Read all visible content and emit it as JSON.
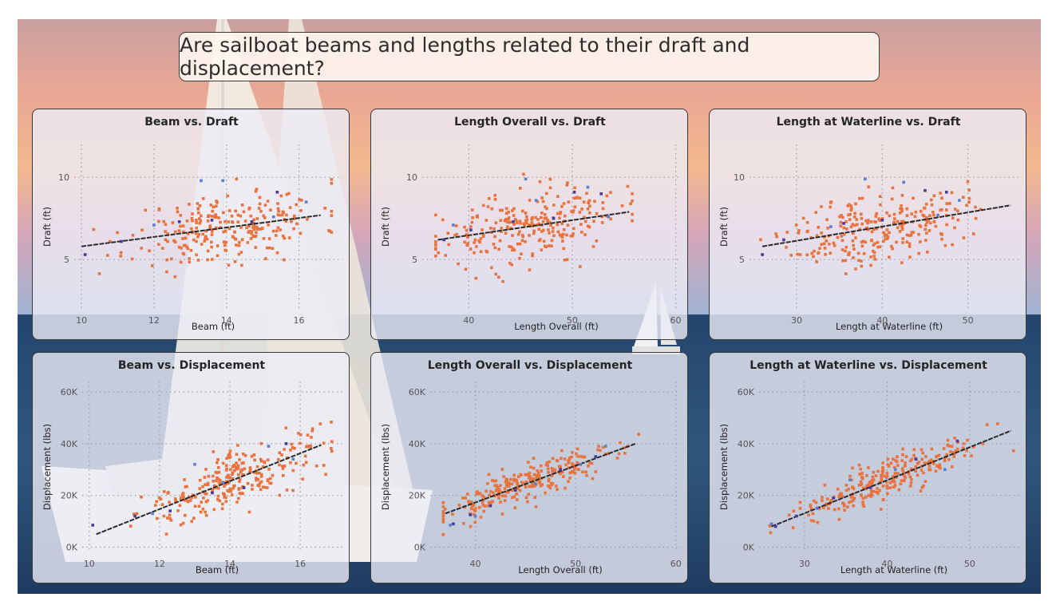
{
  "title": "Are sailboat beams and lengths related to their draft and displacement?",
  "colors": {
    "points": "#e9733f",
    "highlight_blue": "#5b7fd0",
    "highlight_purple": "#4a3a9a",
    "trend": "#2a2a2a"
  },
  "chart_data": [
    {
      "type": "scatter",
      "title": "Beam vs. Draft",
      "xlabel": "Beam (ft)",
      "ylabel": "Draft (ft)",
      "xlim": [
        9.8,
        17.2
      ],
      "ylim": [
        2.0,
        12.0
      ],
      "xticks": [
        10,
        12,
        14,
        16
      ],
      "yticks": [
        5,
        10
      ],
      "ytick_labels": [
        "5",
        "10"
      ],
      "trend": {
        "x": [
          10.0,
          16.6
        ],
        "y": [
          5.8,
          7.7
        ]
      },
      "highlight_blue": [
        [
          12.0,
          7.1
        ],
        [
          13.3,
          9.8
        ],
        [
          13.9,
          9.8
        ],
        [
          15.3,
          7.6
        ],
        [
          16.2,
          8.5
        ]
      ],
      "highlight_purple": [
        [
          10.1,
          5.3
        ],
        [
          11.1,
          6.1
        ],
        [
          12.7,
          7.3
        ],
        [
          13.6,
          7.4
        ],
        [
          14.7,
          7.3
        ],
        [
          15.4,
          9.1
        ]
      ]
    },
    {
      "type": "scatter",
      "title": "Length Overall vs. Draft",
      "xlabel": "Length Overall (ft)",
      "ylabel": "Draft (ft)",
      "xlim": [
        35.5,
        60.5
      ],
      "ylim": [
        2.0,
        12.0
      ],
      "xticks": [
        40,
        50,
        60
      ],
      "yticks": [
        5,
        10
      ],
      "ytick_labels": [
        "5",
        "10"
      ],
      "trend": {
        "x": [
          37.0,
          55.5
        ],
        "y": [
          6.2,
          7.9
        ]
      },
      "highlight_blue": [
        [
          38.5,
          7.1
        ],
        [
          45.5,
          9.9
        ],
        [
          46.5,
          8.6
        ],
        [
          51.5,
          9.4
        ],
        [
          53.5,
          7.6
        ]
      ],
      "highlight_purple": [
        [
          37.6,
          6.2
        ],
        [
          40.2,
          6.8
        ],
        [
          44.3,
          7.3
        ],
        [
          48.2,
          7.5
        ],
        [
          50.2,
          9.1
        ],
        [
          52.8,
          9.0
        ]
      ]
    },
    {
      "type": "scatter",
      "title": "Length at Waterline vs. Draft",
      "xlabel": "Length at Waterline (ft)",
      "ylabel": "Draft (ft)",
      "xlim": [
        24.5,
        56.0
      ],
      "ylim": [
        2.0,
        12.0
      ],
      "xticks": [
        30,
        40,
        50
      ],
      "yticks": [
        5,
        10
      ],
      "ytick_labels": [
        "5",
        "10"
      ],
      "trend": {
        "x": [
          26.0,
          55.0
        ],
        "y": [
          5.8,
          8.3
        ]
      },
      "highlight_blue": [
        [
          34.0,
          7.0
        ],
        [
          38.0,
          9.9
        ],
        [
          42.5,
          9.7
        ],
        [
          46.5,
          7.7
        ],
        [
          49.0,
          8.6
        ]
      ],
      "highlight_purple": [
        [
          26.0,
          5.3
        ],
        [
          28.5,
          6.2
        ],
        [
          35.5,
          7.2
        ],
        [
          40.0,
          7.4
        ],
        [
          45.0,
          9.2
        ],
        [
          47.5,
          9.1
        ]
      ]
    },
    {
      "type": "scatter",
      "title": "Beam vs. Displacement",
      "xlabel": "Beam (ft)",
      "ylabel": "Displacement (lbs)",
      "xlim": [
        9.8,
        17.2
      ],
      "ylim": [
        -2000,
        64000
      ],
      "xticks": [
        10,
        12,
        14,
        16
      ],
      "yticks": [
        0,
        20000,
        40000,
        60000
      ],
      "ytick_labels": [
        "0K",
        "20K",
        "40K",
        "60K"
      ],
      "trend": {
        "x": [
          10.2,
          16.6
        ],
        "y": [
          5000,
          39500
        ]
      },
      "highlight_blue": [
        [
          11.8,
          13000
        ],
        [
          13.0,
          32000
        ],
        [
          13.8,
          25000
        ],
        [
          15.1,
          39000
        ],
        [
          15.8,
          34000
        ]
      ],
      "highlight_purple": [
        [
          10.1,
          8500
        ],
        [
          11.3,
          12000
        ],
        [
          12.3,
          14000
        ],
        [
          13.5,
          21000
        ],
        [
          14.4,
          23000
        ],
        [
          15.6,
          40000
        ]
      ]
    },
    {
      "type": "scatter",
      "title": "Length Overall vs. Displacement",
      "xlabel": "Length Overall (ft)",
      "ylabel": "Displacement (lbs)",
      "xlim": [
        35.5,
        60.5
      ],
      "ylim": [
        -2000,
        64000
      ],
      "xticks": [
        40,
        50,
        60
      ],
      "yticks": [
        0,
        20000,
        40000,
        60000
      ],
      "ytick_labels": [
        "0K",
        "20K",
        "40K",
        "60K"
      ],
      "trend": {
        "x": [
          37.0,
          56.0
        ],
        "y": [
          13000,
          40000
        ]
      },
      "highlight_blue": [
        [
          37.5,
          8500
        ],
        [
          40.0,
          12000
        ],
        [
          46.0,
          24500
        ],
        [
          50.5,
          32000
        ],
        [
          53.0,
          39000
        ]
      ],
      "highlight_purple": [
        [
          37.8,
          9000
        ],
        [
          39.5,
          12500
        ],
        [
          41.5,
          16000
        ],
        [
          44.0,
          22000
        ],
        [
          48.5,
          30000
        ],
        [
          52.0,
          35000
        ]
      ]
    },
    {
      "type": "scatter",
      "title": "Length at Waterline vs. Displacement",
      "xlabel": "Length at Waterline (ft)",
      "ylabel": "Displacement (lbs)",
      "xlim": [
        24.5,
        56.0
      ],
      "ylim": [
        -2000,
        64000
      ],
      "xticks": [
        30,
        40,
        50
      ],
      "yticks": [
        0,
        20000,
        40000,
        60000
      ],
      "ytick_labels": [
        "0K",
        "20K",
        "40K",
        "60K"
      ],
      "trend": {
        "x": [
          26.0,
          55.0
        ],
        "y": [
          8000,
          45000
        ]
      },
      "highlight_blue": [
        [
          26.0,
          9000
        ],
        [
          31.5,
          15000
        ],
        [
          35.5,
          26000
        ],
        [
          41.0,
          30000
        ],
        [
          47.0,
          30000
        ]
      ],
      "highlight_purple": [
        [
          26.5,
          8000
        ],
        [
          29.0,
          12000
        ],
        [
          33.5,
          19000
        ],
        [
          38.0,
          23000
        ],
        [
          43.5,
          34000
        ],
        [
          48.5,
          41000
        ]
      ]
    }
  ]
}
